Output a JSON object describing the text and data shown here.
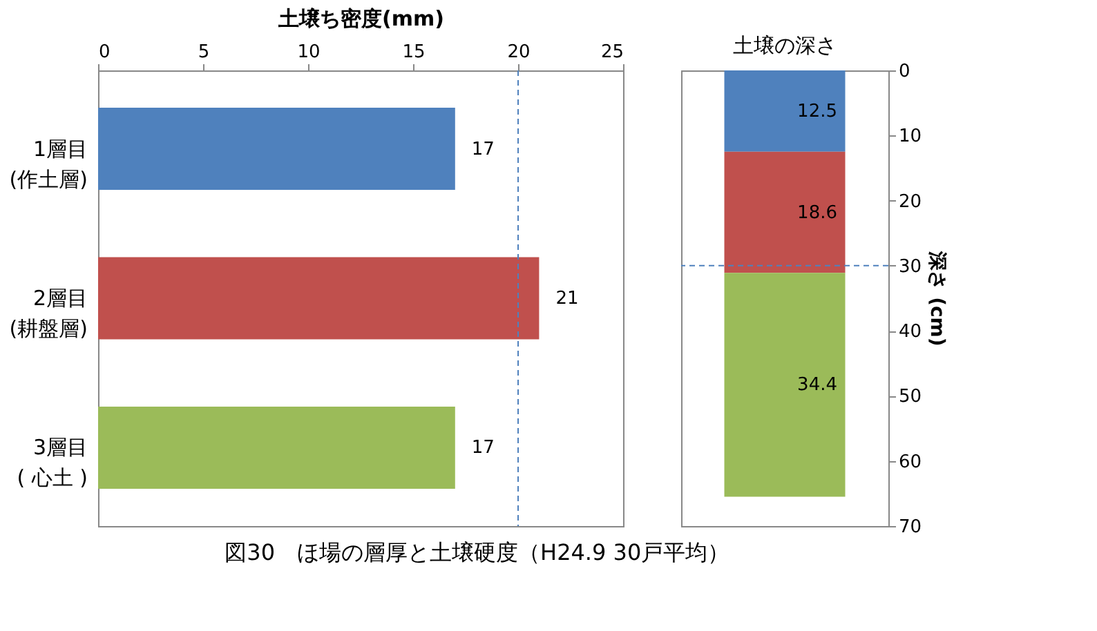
{
  "chart_data": [
    {
      "type": "bar",
      "orientation": "horizontal",
      "xlabel": "土壌ち密度(mm)",
      "categories": [
        "1層目\n(作土層)",
        "2層目\n(耕盤層)",
        "3層目\n( 心土 )"
      ],
      "values": [
        17,
        21,
        17
      ],
      "colors": [
        "#4f81bd",
        "#c0504d",
        "#9bbb59"
      ],
      "xlim": [
        0,
        25
      ],
      "xticks": [
        0,
        5,
        10,
        15,
        20,
        25
      ],
      "data_labels": true,
      "ref_lines": [
        {
          "axis": "x",
          "value": 20,
          "color": "#4f81bd",
          "line_style": "dashed"
        }
      ],
      "grid": false,
      "annotations": [
        "図30　ほ場の層厚と土壌硬度（H24.9 30戸平均）"
      ]
    },
    {
      "type": "bar",
      "stacked": true,
      "title": "土壌の深さ",
      "ylabel": "深さ (cm)",
      "categories": [
        null
      ],
      "series": [
        {
          "color": "#4f81bd",
          "values": [
            12.5
          ]
        },
        {
          "color": "#c0504d",
          "values": [
            18.6
          ]
        },
        {
          "color": "#9bbb59",
          "values": [
            34.4
          ]
        }
      ],
      "ylim": [
        70,
        0
      ],
      "yticks": [
        0,
        10,
        20,
        30,
        40,
        50,
        60,
        70
      ],
      "tick_labels": "y",
      "data_labels": true,
      "ref_lines": [
        {
          "axis": "y",
          "value": 30,
          "color": "#4f81bd",
          "line_style": "dashed"
        }
      ],
      "grid": false
    }
  ]
}
